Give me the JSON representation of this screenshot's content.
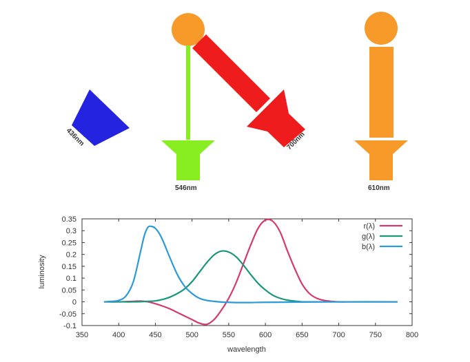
{
  "lamps": {
    "blue": {
      "label": "436nm",
      "color": "#2424e0"
    },
    "green": {
      "label": "546nm",
      "color": "#88ee22"
    },
    "red": {
      "label": "700nm",
      "color": "#ee1c1c"
    },
    "test": {
      "label": "610nm",
      "color": "#f79a2a"
    }
  },
  "chart_data": {
    "type": "line",
    "title": "",
    "xlabel": "wavelength",
    "ylabel": "luminosity",
    "xlim": [
      350,
      800
    ],
    "ylim": [
      -0.1,
      0.35
    ],
    "xticks": [
      "350",
      "400",
      "450",
      "500",
      "550",
      "600",
      "650",
      "700",
      "750",
      "800"
    ],
    "yticks": [
      "-0.1",
      "-0.05",
      "0",
      "0.05",
      "0.1",
      "0.15",
      "0.2",
      "0.25",
      "0.3",
      "0.35"
    ],
    "legend_position": "top-right",
    "grid": false,
    "series": [
      {
        "name": "r(λ)",
        "color": "#d6386c",
        "x": [
          380,
          400,
          420,
          430,
          440,
          450,
          460,
          470,
          480,
          490,
          500,
          510,
          520,
          530,
          540,
          550,
          560,
          570,
          580,
          590,
          600,
          610,
          620,
          630,
          640,
          650,
          660,
          670,
          680,
          690,
          700,
          720,
          740,
          760,
          780
        ],
        "y": [
          0.0,
          0.0,
          0.002,
          0.003,
          0.0,
          -0.008,
          -0.018,
          -0.03,
          -0.045,
          -0.06,
          -0.075,
          -0.09,
          -0.095,
          -0.075,
          -0.035,
          0.015,
          0.08,
          0.16,
          0.24,
          0.31,
          0.345,
          0.34,
          0.295,
          0.215,
          0.14,
          0.075,
          0.035,
          0.015,
          0.006,
          0.002,
          0.0,
          0.0,
          0.0,
          0.0,
          0.0
        ]
      },
      {
        "name": "g(λ)",
        "color": "#17967a",
        "x": [
          380,
          400,
          420,
          440,
          450,
          460,
          470,
          480,
          490,
          500,
          510,
          520,
          530,
          540,
          550,
          560,
          570,
          580,
          590,
          600,
          610,
          620,
          630,
          640,
          650,
          660,
          680,
          700,
          740,
          780
        ],
        "y": [
          0.0,
          0.0,
          0.0,
          0.002,
          0.004,
          0.01,
          0.02,
          0.035,
          0.055,
          0.085,
          0.125,
          0.165,
          0.198,
          0.214,
          0.21,
          0.19,
          0.155,
          0.115,
          0.078,
          0.05,
          0.028,
          0.015,
          0.007,
          0.003,
          0.0,
          0.0,
          0.0,
          0.0,
          0.0,
          0.0
        ]
      },
      {
        "name": "b(λ)",
        "color": "#2a9ad8",
        "x": [
          380,
          390,
          400,
          410,
          420,
          430,
          435,
          440,
          445,
          450,
          455,
          460,
          470,
          480,
          490,
          500,
          510,
          520,
          530,
          540,
          550,
          560,
          580,
          600,
          650,
          700,
          780
        ],
        "y": [
          0.0,
          0.002,
          0.006,
          0.025,
          0.085,
          0.215,
          0.28,
          0.315,
          0.318,
          0.31,
          0.29,
          0.26,
          0.185,
          0.115,
          0.065,
          0.035,
          0.015,
          0.006,
          0.002,
          -0.001,
          -0.002,
          -0.003,
          -0.003,
          -0.002,
          -0.001,
          0.0,
          0.0
        ]
      }
    ]
  }
}
